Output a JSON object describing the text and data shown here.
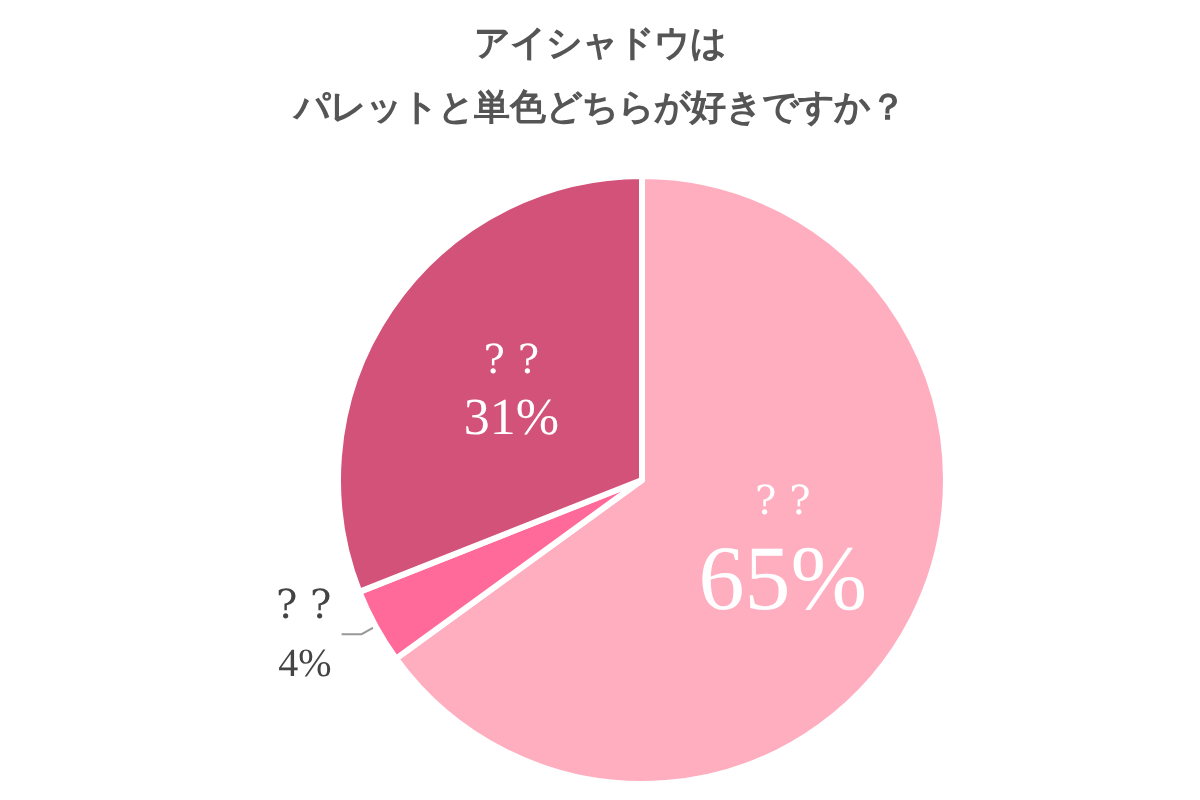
{
  "chart_data": {
    "type": "pie",
    "title": "アイシャドウは",
    "subtitle": "パレットと単色どちらが好きですか？",
    "categories": [
      "? ?",
      "? ?",
      "? ?"
    ],
    "values": [
      65,
      4,
      31
    ],
    "value_labels": [
      "65%",
      "4%",
      "31%"
    ],
    "colors": [
      "#ffaec0",
      "#ff6a9a",
      "#d2527a"
    ],
    "legend": false
  }
}
